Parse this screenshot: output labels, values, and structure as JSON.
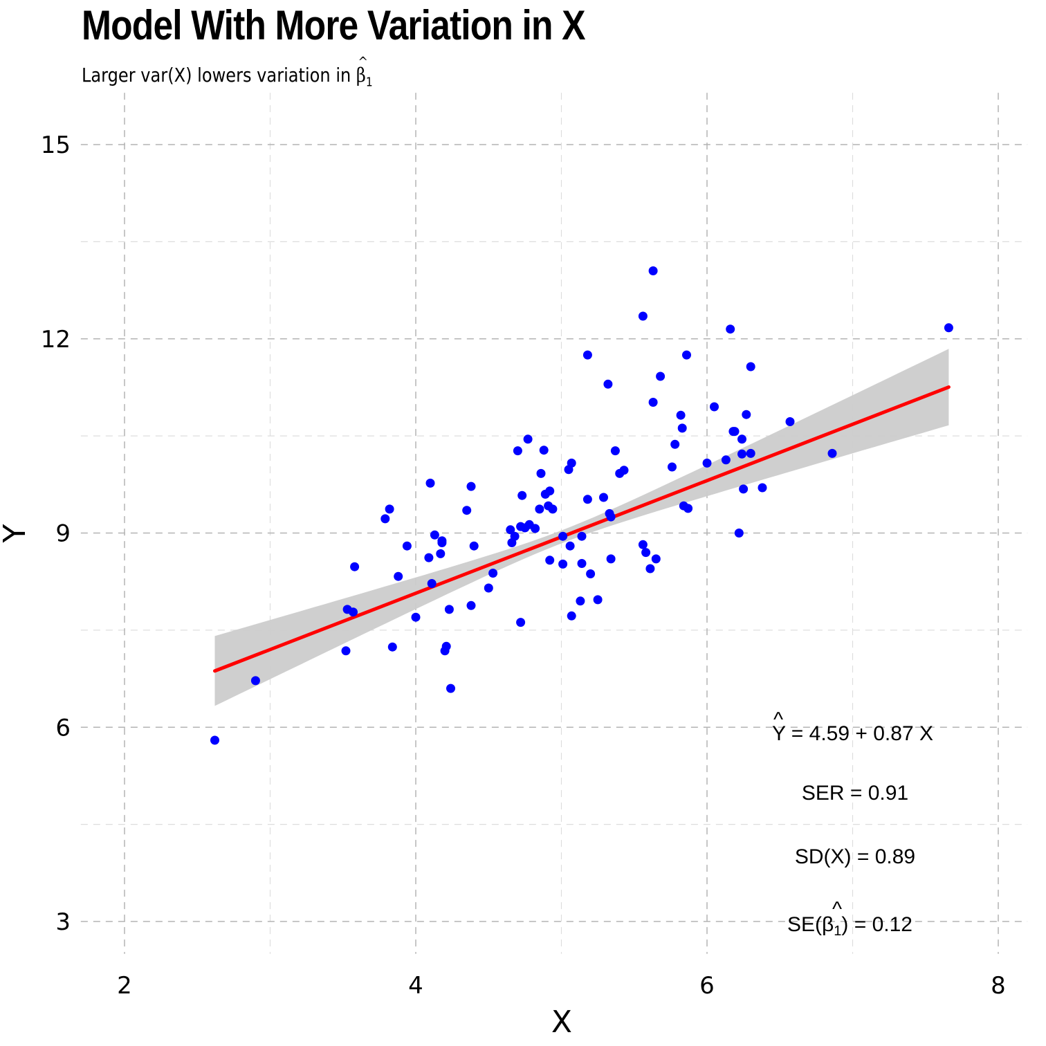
{
  "chart_data": {
    "type": "scatter",
    "title": "Model With More Variation in X",
    "subtitle_prefix": "Larger var(X) lowers variation in ",
    "subtitle_symbol": "β",
    "subtitle_subscript": "1",
    "xlabel": "X",
    "ylabel": "Y",
    "xlim": [
      1.7,
      8.2
    ],
    "ylim": [
      2.5,
      15.8
    ],
    "x_ticks": [
      2,
      4,
      6,
      8
    ],
    "y_ticks": [
      3,
      6,
      9,
      12,
      15
    ],
    "grid": true,
    "grid_style": "dashed",
    "point_color": "#0000ff",
    "fit_color": "#ff0000",
    "band_color": "#cccccc",
    "fit": {
      "intercept": 4.59,
      "slope": 0.87,
      "x_range": [
        2.62,
        7.66
      ],
      "band_halfwidth_at_ends": [
        0.54,
        0.59
      ],
      "band_halfwidth_at_mean": 0.1,
      "x_mean": 5.0
    },
    "annotations": {
      "equation": {
        "lhs": "Y",
        "rhs": " = 4.59 + 0.87 X"
      },
      "ser": "SER = 0.91",
      "sdx": "SD(X) = 0.89",
      "seb": {
        "prefix": "SE(",
        "symbol": "β",
        "subscript": "1",
        "suffix": ") = 0.12"
      }
    },
    "points": [
      [
        2.62,
        5.8
      ],
      [
        2.9,
        6.72
      ],
      [
        3.52,
        7.18
      ],
      [
        3.53,
        7.82
      ],
      [
        3.57,
        7.78
      ],
      [
        3.58,
        8.48
      ],
      [
        3.79,
        9.22
      ],
      [
        3.82,
        9.37
      ],
      [
        3.84,
        7.24
      ],
      [
        3.88,
        8.33
      ],
      [
        3.94,
        8.8
      ],
      [
        4.0,
        7.7
      ],
      [
        4.09,
        8.62
      ],
      [
        4.1,
        9.77
      ],
      [
        4.11,
        8.22
      ],
      [
        4.13,
        8.97
      ],
      [
        4.17,
        8.68
      ],
      [
        4.18,
        8.85
      ],
      [
        4.18,
        8.88
      ],
      [
        4.2,
        7.18
      ],
      [
        4.21,
        7.25
      ],
      [
        4.23,
        7.82
      ],
      [
        4.24,
        6.6
      ],
      [
        4.35,
        9.35
      ],
      [
        4.38,
        9.72
      ],
      [
        4.38,
        7.88
      ],
      [
        4.4,
        8.8
      ],
      [
        4.5,
        8.15
      ],
      [
        4.53,
        8.38
      ],
      [
        4.65,
        9.05
      ],
      [
        4.66,
        8.85
      ],
      [
        4.68,
        8.95
      ],
      [
        4.7,
        10.27
      ],
      [
        4.72,
        7.62
      ],
      [
        4.72,
        9.1
      ],
      [
        4.73,
        9.58
      ],
      [
        4.75,
        9.08
      ],
      [
        4.77,
        10.45
      ],
      [
        4.78,
        9.13
      ],
      [
        4.82,
        9.07
      ],
      [
        4.85,
        9.37
      ],
      [
        4.86,
        9.92
      ],
      [
        4.88,
        10.28
      ],
      [
        4.89,
        9.6
      ],
      [
        4.91,
        9.42
      ],
      [
        4.92,
        8.58
      ],
      [
        4.92,
        9.65
      ],
      [
        4.94,
        9.37
      ],
      [
        5.01,
        8.95
      ],
      [
        5.01,
        8.52
      ],
      [
        5.05,
        9.98
      ],
      [
        5.06,
        8.8
      ],
      [
        5.07,
        10.08
      ],
      [
        5.07,
        7.72
      ],
      [
        5.13,
        7.95
      ],
      [
        5.14,
        8.53
      ],
      [
        5.14,
        8.95
      ],
      [
        5.18,
        11.75
      ],
      [
        5.18,
        9.52
      ],
      [
        5.2,
        8.37
      ],
      [
        5.25,
        7.97
      ],
      [
        5.29,
        9.55
      ],
      [
        5.32,
        11.3
      ],
      [
        5.33,
        9.3
      ],
      [
        5.34,
        9.25
      ],
      [
        5.34,
        8.6
      ],
      [
        5.37,
        10.27
      ],
      [
        5.4,
        9.92
      ],
      [
        5.43,
        9.97
      ],
      [
        5.56,
        8.82
      ],
      [
        5.56,
        12.35
      ],
      [
        5.58,
        8.7
      ],
      [
        5.61,
        8.45
      ],
      [
        5.63,
        11.02
      ],
      [
        5.63,
        13.05
      ],
      [
        5.65,
        8.6
      ],
      [
        5.68,
        11.42
      ],
      [
        5.76,
        10.02
      ],
      [
        5.78,
        10.37
      ],
      [
        5.82,
        10.82
      ],
      [
        5.83,
        10.62
      ],
      [
        5.84,
        9.42
      ],
      [
        5.86,
        11.75
      ],
      [
        5.87,
        9.38
      ],
      [
        6.0,
        10.08
      ],
      [
        6.05,
        10.95
      ],
      [
        6.13,
        10.13
      ],
      [
        6.16,
        12.15
      ],
      [
        6.18,
        10.57
      ],
      [
        6.19,
        10.57
      ],
      [
        6.22,
        9.0
      ],
      [
        6.24,
        10.45
      ],
      [
        6.24,
        10.22
      ],
      [
        6.25,
        9.68
      ],
      [
        6.27,
        10.83
      ],
      [
        6.3,
        11.57
      ],
      [
        6.3,
        10.23
      ],
      [
        6.38,
        9.7
      ],
      [
        6.57,
        10.72
      ],
      [
        6.86,
        10.23
      ],
      [
        7.66,
        12.17
      ]
    ]
  }
}
